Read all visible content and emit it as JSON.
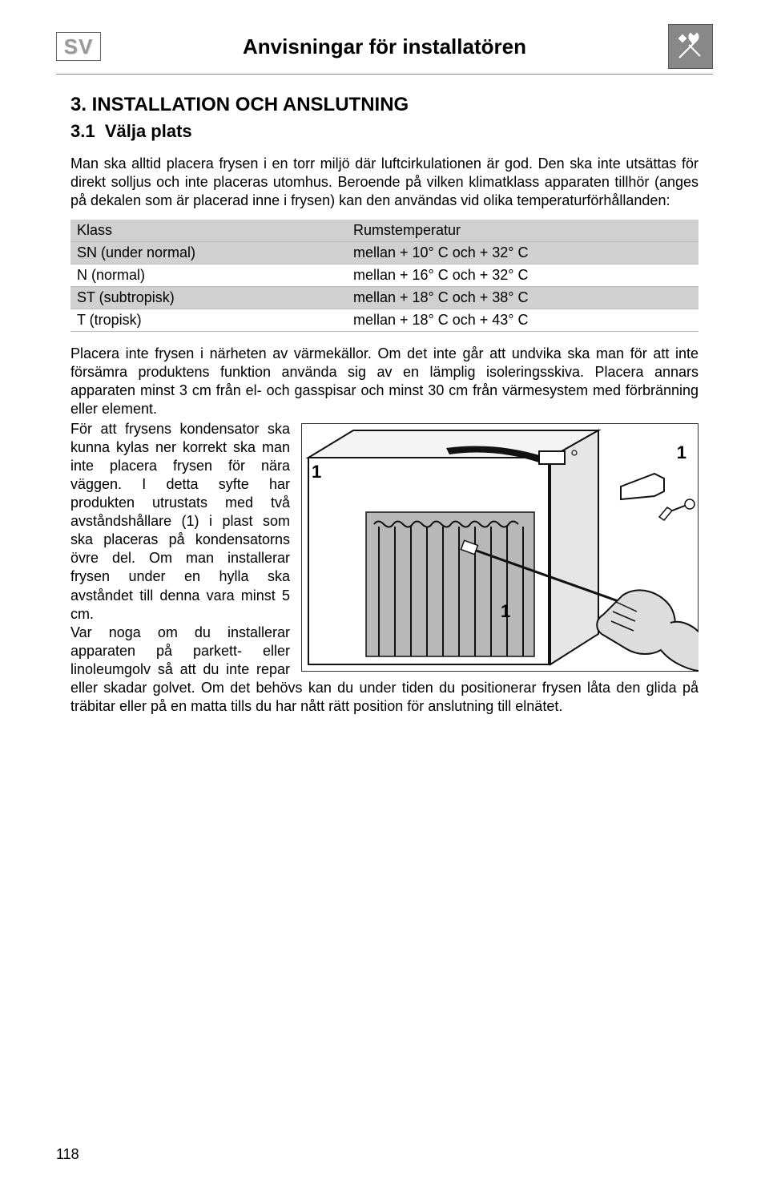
{
  "header": {
    "lang_badge": "SV",
    "title": "Anvisningar för installatören"
  },
  "section": {
    "number_title": "3.  INSTALLATION OCH ANSLUTNING",
    "sub_number": "3.1",
    "sub_title": "Välja plats"
  },
  "para1": "Man ska alltid placera frysen i en torr miljö där luftcirkulationen är god. Den ska inte utsättas för direkt solljus och inte placeras utomhus. Beroende på vilken klimatklass apparaten tillhör (anges på dekalen som är placerad inne i frysen) kan den användas vid olika temperaturförhållanden:",
  "table": {
    "rows": [
      {
        "klass": "Klass",
        "temp": "Rumstemperatur",
        "shaded": true
      },
      {
        "klass": "SN (under normal)",
        "temp": "mellan + 10° C och + 32° C",
        "shaded": true
      },
      {
        "klass": "N (normal)",
        "temp": "mellan + 16° C och + 32° C",
        "shaded": false
      },
      {
        "klass": "ST (subtropisk)",
        "temp": "mellan + 18° C och + 38° C",
        "shaded": true
      },
      {
        "klass": "T (tropisk)",
        "temp": "mellan + 18° C och + 43° C",
        "shaded": false
      }
    ]
  },
  "para2": "Placera inte frysen i närheten av värmekällor. Om det inte går att undvika ska man för att inte försämra produktens funktion använda sig av en lämplig isoleringsskiva. Placera annars apparaten minst 3 cm från el- och gasspisar och minst 30 cm från värmesystem med förbränning eller element.",
  "para3_wrap": "För att frysens kondensator ska kunna kylas ner korrekt ska man inte placera frysen för nära väggen. I detta syfte har produkten utrustats med två avståndshållare (1) i plast som ska placeras på kondensatorns övre del. Om man installerar frysen under en hylla ska avståndet till denna vara minst 5 cm.",
  "para4_wrap": "Var noga om du installerar apparaten på parkett- eller linoleumgolv så att du inte repar eller skadar golvet. Om det behövs kan du under tiden du positionerar frysen låta den glida på träbitar eller på en matta tills du har nått rätt position för anslutning till elnätet.",
  "figure": {
    "labels": {
      "top_right": "1",
      "top_left": "1",
      "bottom_center": "1"
    }
  },
  "page_number": "118"
}
